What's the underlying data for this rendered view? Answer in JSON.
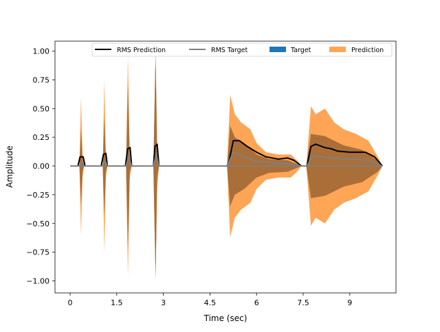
{
  "chart_data": {
    "type": "area",
    "title": "",
    "xlabel": "Time (sec)",
    "ylabel": "Amplitude",
    "xlim": [
      -0.5,
      10.5
    ],
    "ylim": [
      -1.1,
      1.1
    ],
    "xticks": [
      0,
      1.5,
      3,
      4.5,
      6,
      7.5,
      9
    ],
    "xtick_labels": [
      "0",
      "1.5",
      "3",
      "4.5",
      "6",
      "7.5",
      "9"
    ],
    "yticks": [
      -1.0,
      -0.75,
      -0.5,
      -0.25,
      0.0,
      0.25,
      0.5,
      0.75,
      1.0
    ],
    "ytick_labels": [
      "−1.00",
      "−0.75",
      "−0.50",
      "−0.25",
      "0.00",
      "0.25",
      "0.50",
      "0.75",
      "1.00"
    ],
    "grid": false,
    "legend": {
      "placement": "top-right",
      "entries": [
        "RMS Prediction",
        "RMS Target",
        "Target",
        "Prediction"
      ]
    },
    "colors": {
      "rms_prediction": "#000000",
      "rms_target": "#808080",
      "target": "#1f77b4",
      "prediction": "#ff7f0e"
    },
    "series": [
      {
        "name": "Prediction",
        "kind": "envelope",
        "points": [
          [
            0,
            0
          ],
          [
            0.3,
            0
          ],
          [
            0.35,
            0.6
          ],
          [
            0.4,
            0.1
          ],
          [
            0.45,
            0
          ],
          [
            1.05,
            0
          ],
          [
            1.1,
            0.75
          ],
          [
            1.15,
            0.1
          ],
          [
            1.2,
            0
          ],
          [
            1.8,
            0
          ],
          [
            1.86,
            0.96
          ],
          [
            1.92,
            0.1
          ],
          [
            1.98,
            0
          ],
          [
            2.68,
            0
          ],
          [
            2.75,
            1.0
          ],
          [
            2.8,
            0.2
          ],
          [
            2.86,
            0
          ],
          [
            5.05,
            0
          ],
          [
            5.15,
            0.62
          ],
          [
            5.3,
            0.45
          ],
          [
            5.5,
            0.38
          ],
          [
            5.8,
            0.32
          ],
          [
            6.0,
            0.2
          ],
          [
            6.3,
            0.12
          ],
          [
            6.7,
            0.1
          ],
          [
            7.1,
            0.1
          ],
          [
            7.3,
            0.05
          ],
          [
            7.45,
            0
          ],
          [
            7.6,
            0
          ],
          [
            7.75,
            0.52
          ],
          [
            7.9,
            0.45
          ],
          [
            8.2,
            0.5
          ],
          [
            8.5,
            0.38
          ],
          [
            8.8,
            0.32
          ],
          [
            9.2,
            0.28
          ],
          [
            9.6,
            0.22
          ],
          [
            9.9,
            0.08
          ],
          [
            10.05,
            0
          ]
        ]
      },
      {
        "name": "Target",
        "kind": "envelope",
        "points": [
          [
            0,
            0
          ],
          [
            0.3,
            0
          ],
          [
            0.35,
            0.33
          ],
          [
            0.4,
            0.05
          ],
          [
            0.45,
            0
          ],
          [
            1.05,
            0
          ],
          [
            1.1,
            0.42
          ],
          [
            1.15,
            0.05
          ],
          [
            1.2,
            0
          ],
          [
            1.8,
            0
          ],
          [
            1.86,
            0.7
          ],
          [
            1.92,
            0.05
          ],
          [
            1.98,
            0
          ],
          [
            2.68,
            0
          ],
          [
            2.75,
            0.97
          ],
          [
            2.8,
            0.1
          ],
          [
            2.86,
            0
          ],
          [
            5.05,
            0
          ],
          [
            5.15,
            0.35
          ],
          [
            5.3,
            0.25
          ],
          [
            5.6,
            0.2
          ],
          [
            6.0,
            0.1
          ],
          [
            6.4,
            0.06
          ],
          [
            7.0,
            0.05
          ],
          [
            7.45,
            0
          ],
          [
            7.6,
            0
          ],
          [
            7.75,
            0.28
          ],
          [
            8.2,
            0.26
          ],
          [
            8.8,
            0.18
          ],
          [
            9.4,
            0.14
          ],
          [
            9.9,
            0.05
          ],
          [
            10.05,
            0
          ]
        ]
      },
      {
        "name": "RMS Prediction",
        "kind": "line",
        "points": [
          [
            0,
            0
          ],
          [
            0.25,
            0
          ],
          [
            0.32,
            0.08
          ],
          [
            0.42,
            0.08
          ],
          [
            0.48,
            0
          ],
          [
            1.0,
            0
          ],
          [
            1.07,
            0.1
          ],
          [
            1.15,
            0.11
          ],
          [
            1.2,
            0
          ],
          [
            1.78,
            0
          ],
          [
            1.85,
            0.15
          ],
          [
            1.93,
            0.16
          ],
          [
            1.98,
            0
          ],
          [
            2.68,
            0
          ],
          [
            2.73,
            0.17
          ],
          [
            2.8,
            0.19
          ],
          [
            2.86,
            0
          ],
          [
            5.05,
            0
          ],
          [
            5.12,
            0.05
          ],
          [
            5.25,
            0.22
          ],
          [
            5.45,
            0.22
          ],
          [
            5.7,
            0.17
          ],
          [
            6.0,
            0.12
          ],
          [
            6.3,
            0.08
          ],
          [
            6.7,
            0.06
          ],
          [
            7.0,
            0.07
          ],
          [
            7.2,
            0.05
          ],
          [
            7.45,
            0
          ],
          [
            7.62,
            0
          ],
          [
            7.75,
            0.17
          ],
          [
            7.9,
            0.19
          ],
          [
            8.2,
            0.16
          ],
          [
            8.4,
            0.15
          ],
          [
            8.6,
            0.13
          ],
          [
            9.0,
            0.12
          ],
          [
            9.5,
            0.12
          ],
          [
            9.8,
            0.08
          ],
          [
            10.05,
            0
          ]
        ]
      },
      {
        "name": "RMS Target",
        "kind": "line",
        "points": [
          [
            0,
            0
          ],
          [
            0.3,
            0
          ],
          [
            0.37,
            0.04
          ],
          [
            0.45,
            0
          ],
          [
            1.05,
            0
          ],
          [
            1.12,
            0.05
          ],
          [
            1.2,
            0
          ],
          [
            1.8,
            0
          ],
          [
            1.88,
            0.08
          ],
          [
            1.98,
            0
          ],
          [
            2.68,
            0
          ],
          [
            2.77,
            0.1
          ],
          [
            2.86,
            0
          ],
          [
            5.05,
            0
          ],
          [
            5.25,
            0.12
          ],
          [
            5.6,
            0.08
          ],
          [
            6.0,
            0.04
          ],
          [
            6.5,
            0.03
          ],
          [
            7.0,
            0.02
          ],
          [
            7.45,
            0
          ],
          [
            7.62,
            0
          ],
          [
            7.8,
            0.09
          ],
          [
            8.4,
            0.07
          ],
          [
            9.0,
            0.06
          ],
          [
            9.6,
            0.05
          ],
          [
            10.05,
            0
          ]
        ]
      }
    ]
  }
}
